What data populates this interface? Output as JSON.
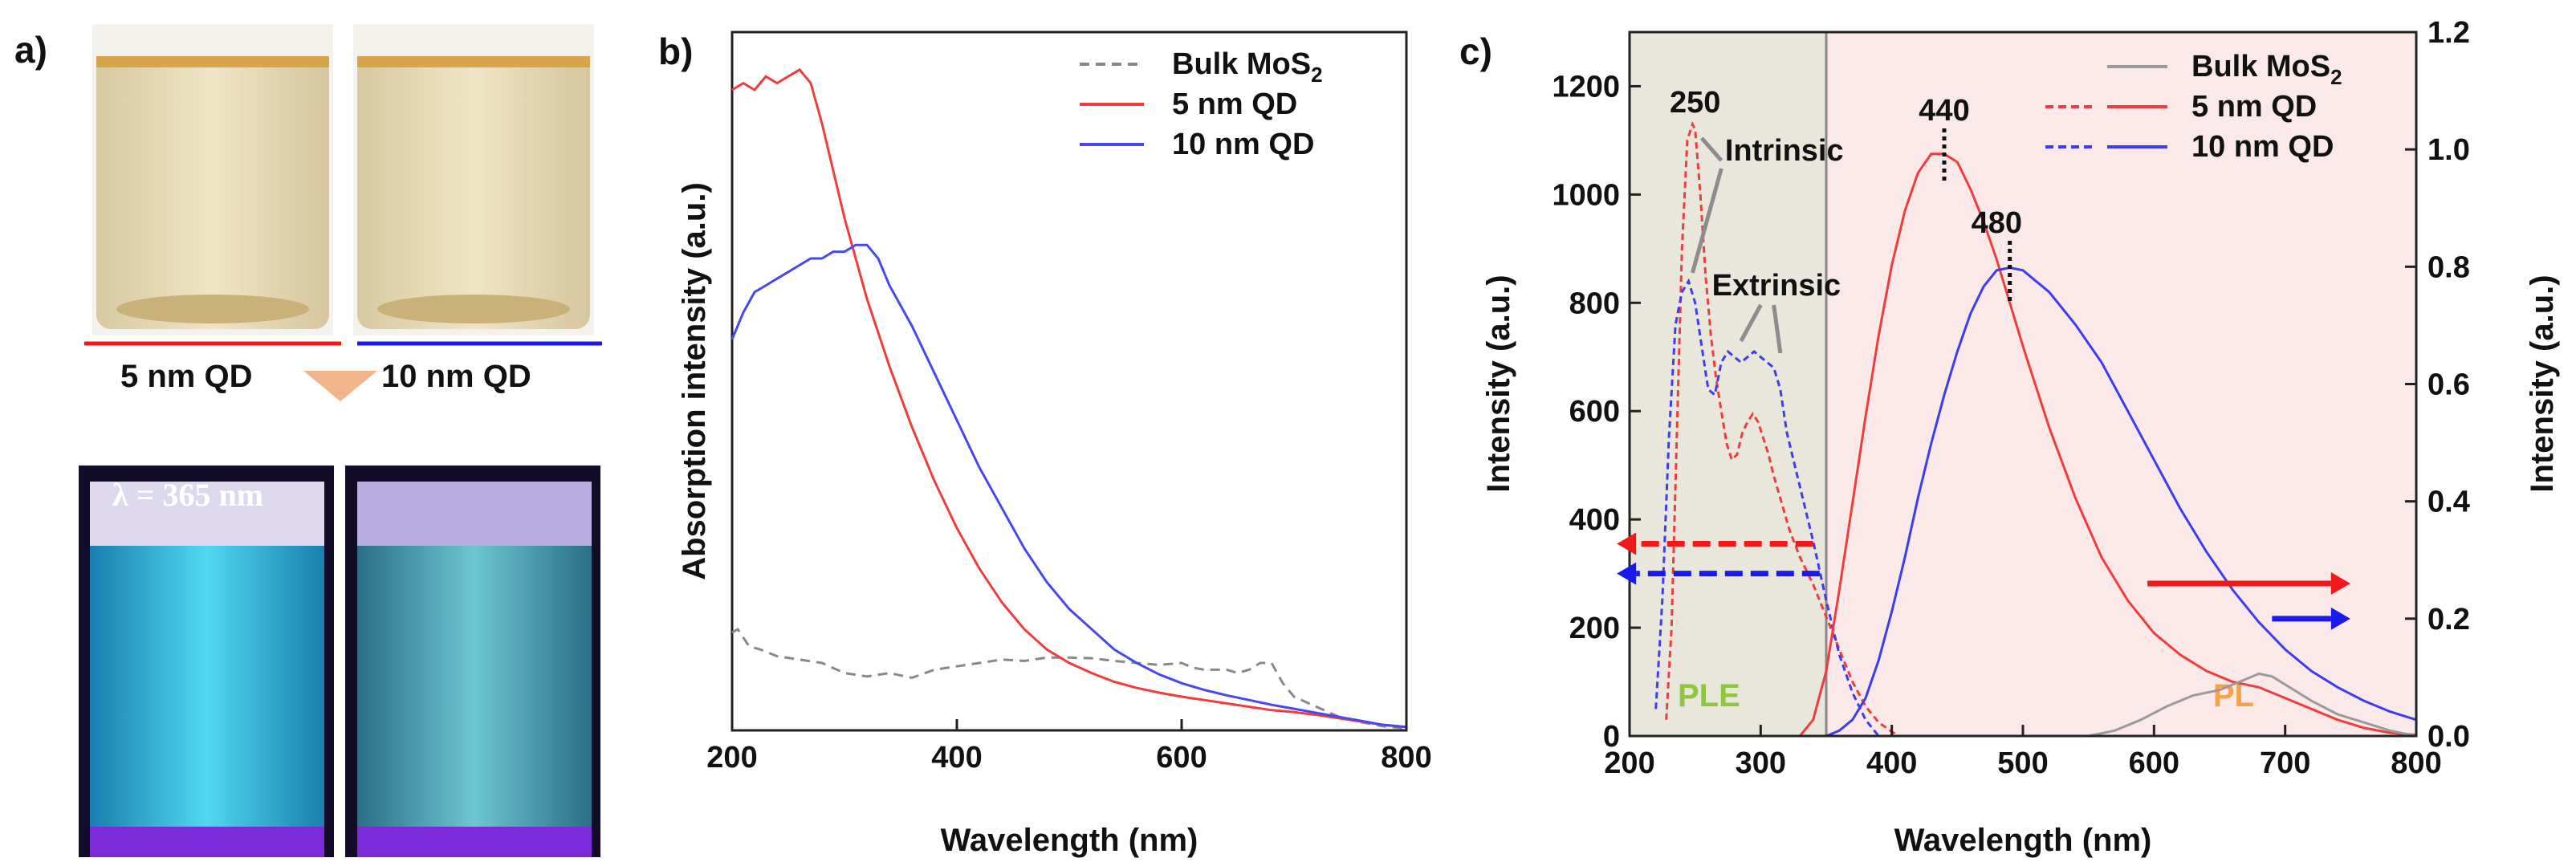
{
  "panel_a": {
    "label": "a)",
    "top_left_caption": "5 nm QD",
    "top_right_caption": "10 nm QD",
    "uv_label": "λ = 365 nm",
    "color_5nm": "#f01818",
    "color_10nm": "#1a1aee"
  },
  "chart_data": [
    {
      "type": "line",
      "panel": "b)",
      "title": "",
      "xlabel": "Wavelength (nm)",
      "ylabel": "Absorption intensity (a.u.)",
      "xlim": [
        200,
        800
      ],
      "ylim": [
        0,
        1
      ],
      "xticks": [
        200,
        400,
        600,
        800
      ],
      "legend_position": "top-right",
      "series": [
        {
          "name": "Bulk MoS2",
          "legend_main": "Bulk MoS",
          "legend_sub": "2",
          "color": "#888888",
          "dash": "dashed",
          "x": [
            200,
            205,
            215,
            225,
            240,
            260,
            280,
            300,
            320,
            340,
            360,
            380,
            400,
            420,
            440,
            460,
            480,
            500,
            520,
            540,
            560,
            580,
            600,
            610,
            620,
            630,
            640,
            650,
            660,
            670,
            680,
            690,
            700,
            720,
            740,
            760,
            780,
            800
          ],
          "y": [
            0.145,
            0.15,
            0.125,
            0.12,
            0.11,
            0.105,
            0.1,
            0.085,
            0.08,
            0.085,
            0.078,
            0.09,
            0.095,
            0.1,
            0.105,
            0.103,
            0.108,
            0.108,
            0.107,
            0.103,
            0.1,
            0.097,
            0.1,
            0.093,
            0.09,
            0.09,
            0.09,
            0.085,
            0.09,
            0.1,
            0.1,
            0.07,
            0.05,
            0.035,
            0.02,
            0.012,
            0.006,
            0.003
          ]
        },
        {
          "name": "5 nm QD",
          "legend_main": "5 nm QD",
          "legend_sub": "",
          "color": "#f03c3c",
          "dash": "solid",
          "x": [
            200,
            210,
            220,
            230,
            240,
            250,
            260,
            270,
            280,
            290,
            300,
            310,
            320,
            340,
            360,
            380,
            400,
            420,
            440,
            460,
            480,
            500,
            520,
            540,
            560,
            580,
            600,
            620,
            640,
            660,
            680,
            700,
            720,
            740,
            760,
            780,
            800
          ],
          "y": [
            0.95,
            0.96,
            0.95,
            0.97,
            0.96,
            0.97,
            0.98,
            0.96,
            0.9,
            0.83,
            0.76,
            0.7,
            0.64,
            0.54,
            0.45,
            0.37,
            0.3,
            0.24,
            0.19,
            0.15,
            0.12,
            0.1,
            0.085,
            0.072,
            0.063,
            0.056,
            0.05,
            0.045,
            0.04,
            0.035,
            0.03,
            0.027,
            0.023,
            0.018,
            0.013,
            0.008,
            0.005
          ]
        },
        {
          "name": "10 nm QD",
          "legend_main": "10 nm QD",
          "legend_sub": "",
          "color": "#4848f0",
          "dash": "solid",
          "x": [
            200,
            210,
            220,
            230,
            240,
            250,
            260,
            270,
            280,
            290,
            300,
            310,
            320,
            330,
            340,
            360,
            380,
            400,
            420,
            440,
            460,
            480,
            500,
            520,
            540,
            560,
            580,
            600,
            620,
            640,
            660,
            680,
            700,
            720,
            740,
            760,
            780,
            800
          ],
          "y": [
            0.58,
            0.62,
            0.65,
            0.66,
            0.67,
            0.68,
            0.69,
            0.7,
            0.7,
            0.71,
            0.71,
            0.72,
            0.72,
            0.7,
            0.66,
            0.6,
            0.53,
            0.46,
            0.39,
            0.33,
            0.27,
            0.22,
            0.18,
            0.15,
            0.12,
            0.1,
            0.083,
            0.07,
            0.06,
            0.052,
            0.045,
            0.038,
            0.032,
            0.026,
            0.02,
            0.014,
            0.008,
            0.005
          ]
        }
      ]
    },
    {
      "type": "line",
      "panel": "c)",
      "title": "",
      "xlabel": "Wavelength (nm)",
      "ylabel": "Intensity (a.u.)",
      "ylabel_right": "Intensity (a.u.)",
      "xlim": [
        200,
        800
      ],
      "ylim": [
        0,
        1300
      ],
      "ylim_right": [
        0,
        1.2
      ],
      "xticks": [
        200,
        300,
        400,
        500,
        600,
        700,
        800
      ],
      "yticks": [
        0,
        200,
        400,
        600,
        800,
        1000,
        1200
      ],
      "yticks_right": [
        0.0,
        0.2,
        0.4,
        0.6,
        0.8,
        1.0,
        1.2
      ],
      "legend_position": "top-right",
      "legend": [
        {
          "main": "Bulk MoS",
          "sub": "2"
        },
        {
          "main": "5 nm QD",
          "sub": ""
        },
        {
          "main": "10 nm QD",
          "sub": ""
        }
      ],
      "regions": [
        {
          "label": "PLE",
          "x_range": [
            200,
            350
          ],
          "color": "#e9e6dc",
          "label_color": "#8dc63f"
        },
        {
          "label": "PL",
          "x_range": [
            350,
            800
          ],
          "color": "#fbe8e8",
          "label_color": "#f5a34a"
        }
      ],
      "annotations": [
        "250",
        "440",
        "480",
        "Intrinsic",
        "Extrinsic"
      ],
      "series": [
        {
          "name": "5 nm QD PLE",
          "axis": "left",
          "color": "#f03c3c",
          "dash": "dashed",
          "x": [
            228,
            232,
            236,
            240,
            244,
            248,
            250,
            254,
            258,
            262,
            266,
            270,
            274,
            278,
            282,
            286,
            290,
            294,
            298,
            302,
            306,
            310,
            316,
            322,
            330,
            340,
            350,
            360,
            370,
            380,
            390,
            400,
            405
          ],
          "y": [
            30,
            200,
            550,
            900,
            1100,
            1130,
            1120,
            1000,
            850,
            740,
            660,
            600,
            540,
            510,
            520,
            560,
            580,
            595,
            580,
            550,
            520,
            480,
            430,
            380,
            330,
            280,
            220,
            160,
            100,
            55,
            25,
            8,
            0
          ]
        },
        {
          "name": "10 nm QD PLE",
          "axis": "left",
          "color": "#3c3cf0",
          "dash": "dashed",
          "x": [
            220,
            225,
            230,
            235,
            240,
            245,
            250,
            255,
            260,
            265,
            270,
            275,
            280,
            285,
            290,
            295,
            300,
            305,
            310,
            315,
            320,
            330,
            340,
            350,
            360,
            370,
            380,
            390
          ],
          "y": [
            50,
            250,
            550,
            760,
            820,
            840,
            800,
            720,
            640,
            630,
            690,
            710,
            700,
            690,
            700,
            710,
            700,
            690,
            680,
            640,
            560,
            460,
            360,
            250,
            150,
            80,
            30,
            0
          ]
        },
        {
          "name": "5 nm QD PL",
          "axis": "left",
          "color": "#f03c3c",
          "dash": "solid",
          "x": [
            330,
            340,
            350,
            360,
            370,
            380,
            390,
            400,
            410,
            420,
            430,
            440,
            450,
            460,
            470,
            480,
            490,
            500,
            520,
            540,
            560,
            580,
            600,
            620,
            640,
            660,
            680,
            700,
            720,
            740,
            760,
            780,
            800
          ],
          "y": [
            0,
            30,
            120,
            270,
            430,
            590,
            740,
            870,
            970,
            1040,
            1075,
            1075,
            1060,
            1010,
            950,
            880,
            800,
            720,
            570,
            440,
            330,
            250,
            190,
            150,
            120,
            100,
            90,
            70,
            50,
            30,
            15,
            6,
            2
          ]
        },
        {
          "name": "10 nm QD PL",
          "axis": "left",
          "color": "#3c3cf0",
          "dash": "solid",
          "x": [
            350,
            360,
            370,
            380,
            390,
            400,
            410,
            420,
            430,
            440,
            450,
            460,
            470,
            480,
            490,
            500,
            510,
            520,
            540,
            560,
            580,
            600,
            620,
            640,
            660,
            680,
            700,
            720,
            740,
            760,
            780,
            800
          ],
          "y": [
            0,
            10,
            30,
            70,
            140,
            230,
            330,
            440,
            540,
            630,
            710,
            780,
            830,
            860,
            865,
            860,
            840,
            820,
            760,
            690,
            600,
            510,
            420,
            340,
            270,
            210,
            160,
            120,
            90,
            65,
            45,
            30
          ]
        },
        {
          "name": "Bulk MoS2",
          "axis": "left",
          "color": "#9a9a9a",
          "dash": "solid",
          "x": [
            550,
            570,
            590,
            610,
            630,
            650,
            670,
            680,
            690,
            700,
            720,
            740,
            760,
            780,
            800
          ],
          "y": [
            0,
            10,
            30,
            55,
            75,
            85,
            105,
            115,
            110,
            95,
            65,
            40,
            25,
            10,
            0
          ]
        }
      ]
    }
  ]
}
